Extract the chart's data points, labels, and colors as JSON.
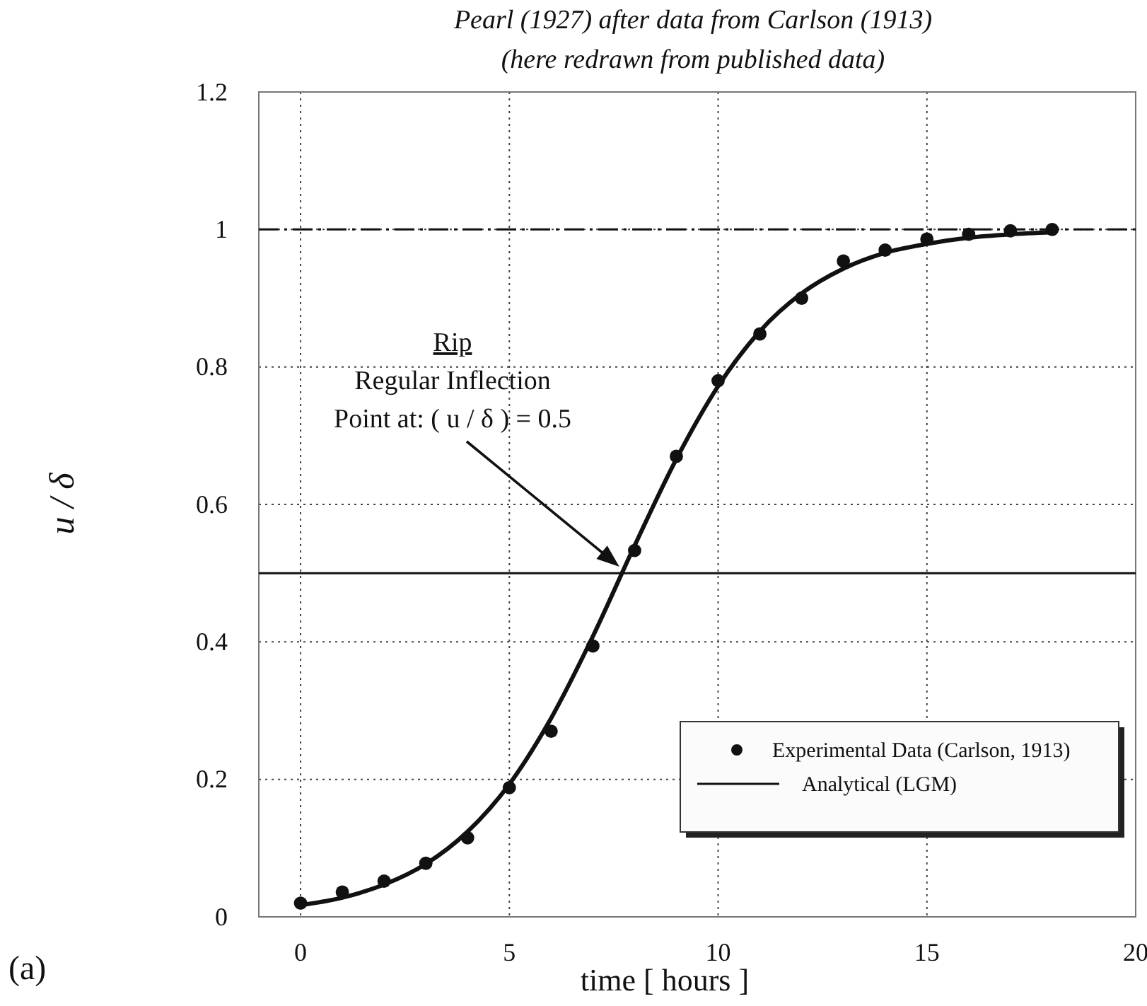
{
  "chart_data": {
    "type": "scatter",
    "title": "Pearl (1927) after data from Carlson (1913)",
    "subtitle": "(here redrawn from published data)",
    "xlabel": "time [ hours ]",
    "ylabel": "u / δ",
    "xlim": [
      -1,
      20
    ],
    "xticks": [
      0,
      5,
      10,
      15,
      20
    ],
    "ylim": [
      0,
      1.2
    ],
    "yticks": [
      0,
      0.2,
      0.4,
      0.6,
      0.8,
      1,
      1.2
    ],
    "grid": true,
    "legend": "bottom right",
    "series": [
      {
        "name": "Experimental Data (Carlson, 1913)",
        "marker": "circle",
        "color": "#111111",
        "x": [
          0,
          1,
          2,
          3,
          4,
          5,
          6,
          7,
          8,
          9,
          10,
          11,
          12,
          13,
          14,
          15,
          16,
          17,
          18
        ],
        "values": [
          0.02,
          0.036,
          0.052,
          0.078,
          0.115,
          0.188,
          0.27,
          0.394,
          0.533,
          0.67,
          0.78,
          0.848,
          0.9,
          0.954,
          0.97,
          0.986,
          0.993,
          0.998,
          1.0
        ]
      },
      {
        "name": "Analytical (LGM)",
        "type": "line",
        "color": "#111111",
        "line_style": "solid",
        "x": [
          0,
          1,
          2,
          3,
          4,
          5,
          6,
          7,
          8,
          9,
          10,
          11,
          12,
          13,
          14,
          15,
          16,
          17,
          18
        ],
        "values": [
          0.017,
          0.028,
          0.047,
          0.077,
          0.124,
          0.193,
          0.289,
          0.408,
          0.54,
          0.666,
          0.772,
          0.852,
          0.907,
          0.943,
          0.966,
          0.979,
          0.988,
          0.993,
          0.996
        ]
      }
    ],
    "ref_lines": [
      {
        "axis": "y",
        "value": 1,
        "color": "#111111",
        "line_style": "dashdot"
      },
      {
        "axis": "y",
        "value": 0.5,
        "color": "#111111",
        "line_style": "solid"
      }
    ],
    "annotations": [
      "Rip\nRegular Inflection\nPoint at: ( u / δ   ) = 0.5",
      "(a)"
    ]
  }
}
